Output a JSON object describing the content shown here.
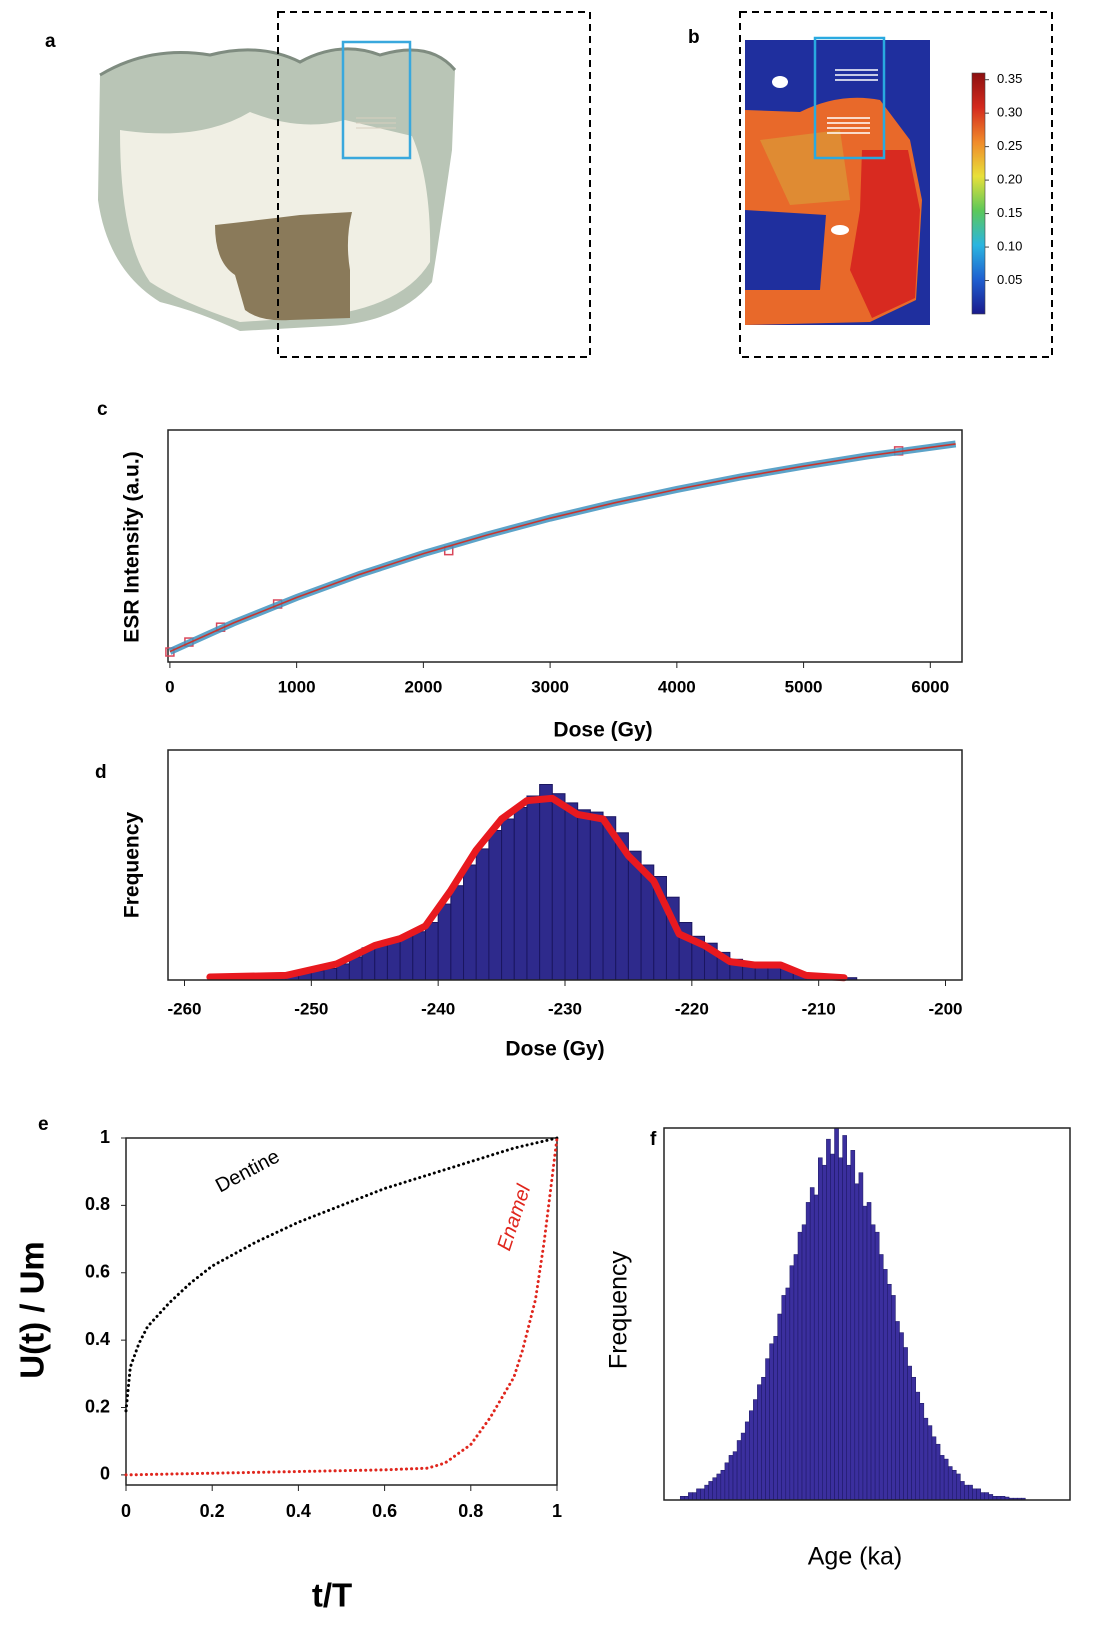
{
  "panel_labels": [
    "a",
    "b",
    "c",
    "d",
    "e",
    "f"
  ],
  "chart_data": [
    {
      "type": "colorbar",
      "ylim": [
        0,
        0.36
      ],
      "yticks": [
        0.05,
        {
          "value": 0.1,
          "label": "0.10"
        },
        0.15,
        {
          "value": 0.2,
          "label": "0.20"
        },
        0.25,
        {
          "value": 0.3,
          "label": "0.30"
        },
        0.35
      ],
      "colors": [
        "#1a1a8c",
        "#1f5fd0",
        "#2bb5e0",
        "#5cc85a",
        "#e8e03a",
        "#f08a2a",
        "#d42a1e",
        "#8c1010"
      ]
    },
    {
      "type": "scatter",
      "x_axis_label": "Dose (Gy)",
      "y_axis_label": "ESR Intensity (a.u.)",
      "xlim": [
        -15,
        6250
      ],
      "ylim": [
        0,
        1
      ],
      "xticks": [
        0,
        1000,
        2000,
        3000,
        4000,
        5000,
        6000
      ],
      "series": [
        {
          "x": [
            0,
            150,
            400,
            850,
            2200,
            5750
          ],
          "values": [
            0.043,
            0.086,
            0.15,
            0.25,
            0.48,
            0.91
          ],
          "color": "#d9475a",
          "marker": "square"
        },
        {
          "x": [
            0,
            500,
            1000,
            1500,
            2000,
            2500,
            3000,
            3500,
            4000,
            4500,
            5000,
            5500,
            6200
          ],
          "values": [
            0.045,
            0.168,
            0.278,
            0.378,
            0.467,
            0.547,
            0.62,
            0.685,
            0.744,
            0.797,
            0.844,
            0.888,
            0.94
          ],
          "color": "#c8352e",
          "band_color": "#3f93bf"
        }
      ]
    },
    {
      "type": "histogram",
      "x_axis_label": "Dose (Gy)",
      "y_axis_label": "Frequency",
      "xlim": [
        -261.3,
        -198.7
      ],
      "ylim": [
        0,
        1
      ],
      "xticks": [
        -260,
        -250,
        -240,
        -230,
        -220,
        -210,
        -200
      ],
      "color": "#2e2a8c",
      "bins": [
        -258,
        -257,
        -256,
        -255,
        -254,
        -253,
        -252,
        -251,
        -250,
        -249,
        -248,
        -247,
        -246,
        -245,
        -244,
        -243,
        -242,
        -241,
        -240,
        -239,
        -238,
        -237,
        -236,
        -235,
        -234,
        -233,
        -232,
        -231,
        -230,
        -229,
        -228,
        -227,
        -226,
        -225,
        -224,
        -223,
        -222,
        -221,
        -220,
        -219,
        -218,
        -217,
        -216,
        -215,
        -214,
        -213,
        -212,
        -211,
        -210,
        -209,
        -208,
        -207
      ],
      "values": [
        0.01,
        0.01,
        0.01,
        0.01,
        0.015,
        0.02,
        0.02,
        0.03,
        0.04,
        0.05,
        0.07,
        0.1,
        0.14,
        0.16,
        0.17,
        0.19,
        0.21,
        0.25,
        0.33,
        0.41,
        0.5,
        0.57,
        0.65,
        0.7,
        0.75,
        0.8,
        0.85,
        0.81,
        0.77,
        0.74,
        0.73,
        0.71,
        0.64,
        0.56,
        0.5,
        0.45,
        0.36,
        0.25,
        0.19,
        0.16,
        0.12,
        0.09,
        0.07,
        0.06,
        0.06,
        0.05,
        0.03,
        0.02,
        0.015,
        0.01,
        0.01
      ],
      "curve": {
        "x": [
          -258,
          -252,
          -248,
          -245,
          -243,
          -241,
          -239,
          -237,
          -235,
          -233,
          -231,
          -229,
          -227,
          -225,
          -223,
          -221,
          -219,
          -217,
          -215,
          -213,
          -211,
          -208
        ],
        "values": [
          0.013,
          0.02,
          0.07,
          0.15,
          0.18,
          0.235,
          0.39,
          0.565,
          0.7,
          0.78,
          0.79,
          0.72,
          0.7,
          0.54,
          0.43,
          0.2,
          0.15,
          0.08,
          0.065,
          0.065,
          0.02,
          0.01
        ],
        "color": "#e8191f"
      }
    },
    {
      "type": "line",
      "x_axis_label": "t/T",
      "y_axis_label": "U(t) / Um",
      "xlim": [
        0,
        1
      ],
      "ylim": [
        -0.03,
        1
      ],
      "xticks": [
        0,
        0.2,
        0.4,
        0.6,
        0.8,
        1
      ],
      "yticks": [
        0,
        0.2,
        0.4,
        0.6,
        0.8,
        1
      ],
      "series": [
        {
          "name": "Dentine",
          "color": "#000000",
          "x": [
            0,
            0.01,
            0.03,
            0.05,
            0.1,
            0.15,
            0.2,
            0.3,
            0.4,
            0.5,
            0.6,
            0.7,
            0.8,
            0.9,
            1
          ],
          "values": [
            0.19,
            0.32,
            0.39,
            0.44,
            0.51,
            0.57,
            0.62,
            0.69,
            0.75,
            0.8,
            0.85,
            0.89,
            0.93,
            0.97,
            1
          ]
        },
        {
          "name": "Enamel",
          "color": "#e0261d",
          "x": [
            0,
            0.2,
            0.4,
            0.6,
            0.7,
            0.74,
            0.8,
            0.845,
            0.9,
            0.92,
            0.95,
            0.97,
            1
          ],
          "values": [
            0,
            0.005,
            0.01,
            0.015,
            0.02,
            0.035,
            0.09,
            0.17,
            0.29,
            0.37,
            0.52,
            0.69,
            1
          ]
        }
      ]
    },
    {
      "type": "histogram",
      "x_axis_label": "Age (ka)",
      "y_axis_label": "Frequency",
      "xlim": [
        0,
        100
      ],
      "ylim": [
        0,
        1
      ],
      "color": "#3b2f9e",
      "bins": [
        4,
        5,
        6,
        7,
        8,
        9,
        10,
        11,
        12,
        13,
        14,
        15,
        16,
        17,
        18,
        19,
        20,
        21,
        22,
        23,
        24,
        25,
        26,
        27,
        28,
        29,
        30,
        31,
        32,
        33,
        34,
        35,
        36,
        37,
        38,
        39,
        40,
        41,
        42,
        43,
        44,
        45,
        46,
        47,
        48,
        49,
        50,
        51,
        52,
        53,
        54,
        55,
        56,
        57,
        58,
        59,
        60,
        61,
        62,
        63,
        64,
        65,
        66,
        67,
        68,
        69,
        70,
        71,
        72,
        73,
        74,
        75,
        76,
        77,
        78,
        79,
        80,
        81,
        82,
        83,
        84,
        85,
        86,
        87,
        88,
        89
      ],
      "values": [
        0.01,
        0.01,
        0.02,
        0.02,
        0.03,
        0.03,
        0.04,
        0.05,
        0.06,
        0.07,
        0.08,
        0.1,
        0.12,
        0.13,
        0.16,
        0.18,
        0.21,
        0.24,
        0.27,
        0.31,
        0.33,
        0.38,
        0.42,
        0.44,
        0.5,
        0.55,
        0.57,
        0.63,
        0.66,
        0.72,
        0.74,
        0.8,
        0.84,
        0.82,
        0.92,
        0.9,
        0.97,
        0.93,
        1,
        0.92,
        0.98,
        0.9,
        0.94,
        0.85,
        0.88,
        0.79,
        0.8,
        0.74,
        0.72,
        0.66,
        0.62,
        0.58,
        0.55,
        0.48,
        0.45,
        0.41,
        0.36,
        0.33,
        0.29,
        0.26,
        0.22,
        0.2,
        0.17,
        0.15,
        0.12,
        0.11,
        0.09,
        0.08,
        0.07,
        0.05,
        0.04,
        0.04,
        0.03,
        0.03,
        0.02,
        0.02,
        0.015,
        0.01,
        0.01,
        0.01,
        0.008,
        0.005,
        0.005,
        0.005,
        0.005
      ]
    }
  ]
}
